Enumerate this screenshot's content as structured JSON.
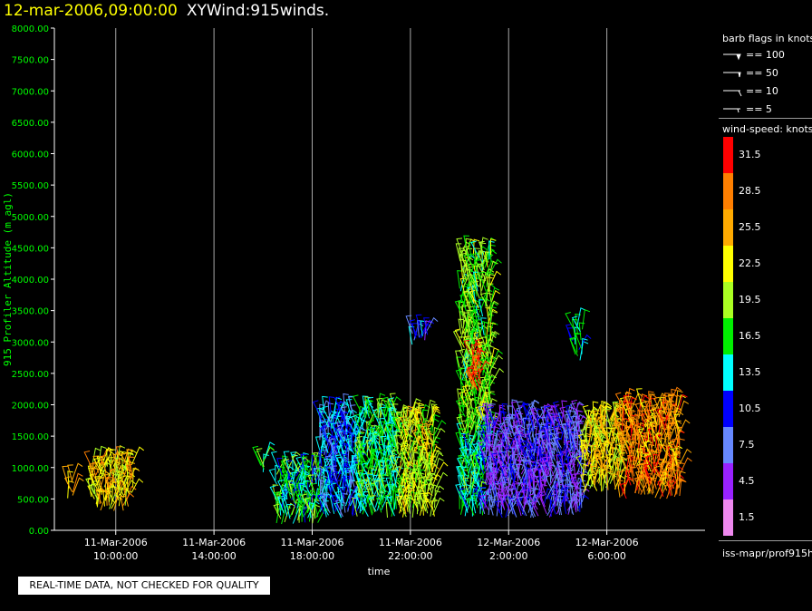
{
  "title": {
    "date": "12-mar-2006,09:00:00",
    "text": "XYWind:915winds."
  },
  "notice": "REAL-TIME DATA, NOT CHECKED FOR QUALITY",
  "legend": {
    "barb_header": "barb flags in knots",
    "barb_flags": [
      "== 100",
      "== 50",
      "== 10",
      "== 5"
    ],
    "speed_header": "wind-speed: knots",
    "speed_bins": [
      {
        "label": "31.5",
        "color": "#ff0000"
      },
      {
        "label": "28.5",
        "color": "#ff7f00"
      },
      {
        "label": "25.5",
        "color": "#ffaa00"
      },
      {
        "label": "22.5",
        "color": "#ffff00"
      },
      {
        "label": "19.5",
        "color": "#aaff22"
      },
      {
        "label": "16.5",
        "color": "#00ee00"
      },
      {
        "label": "13.5",
        "color": "#00ffff"
      },
      {
        "label": "10.5",
        "color": "#0000ff"
      },
      {
        "label": "7.5",
        "color": "#6688ff"
      },
      {
        "label": "4.5",
        "color": "#9922ff"
      },
      {
        "label": "1.5",
        "color": "#ee88ee"
      }
    ],
    "footer": "iss-mapr/prof915h"
  },
  "chart_data": {
    "type": "scatter",
    "ylabel": "915 Profiler Altitude (m agl)",
    "xlabel": "time",
    "ylim": [
      0,
      8000
    ],
    "y_ticks": [
      "0.00",
      "500.00",
      "1000.00",
      "1500.00",
      "2000.00",
      "2500.00",
      "3000.00",
      "3500.00",
      "4000.00",
      "4500.00",
      "5000.00",
      "5500.00",
      "6000.00",
      "6500.00",
      "7000.00",
      "7500.00",
      "8000.00"
    ],
    "xlim_hours": [
      7.5,
      34
    ],
    "x_ticks": [
      {
        "hour": 10,
        "line1": "11-Mar-2006",
        "line2": "10:00:00"
      },
      {
        "hour": 14,
        "line1": "11-Mar-2006",
        "line2": "14:00:00"
      },
      {
        "hour": 18,
        "line1": "11-Mar-2006",
        "line2": "18:00:00"
      },
      {
        "hour": 22,
        "line1": "11-Mar-2006",
        "line2": "22:00:00"
      },
      {
        "hour": 26,
        "line1": "12-Mar-2006",
        "line2": "2:00:00"
      },
      {
        "hour": 30,
        "line1": "12-Mar-2006",
        "line2": "6:00:00"
      }
    ],
    "grid": "vertical",
    "barb_clusters": [
      {
        "t0": 8.0,
        "t1": 8.3,
        "z0": 500,
        "z1": 800,
        "speed": 26
      },
      {
        "t0": 9.0,
        "t1": 10.7,
        "z0": 300,
        "z1": 1100,
        "speed": 24
      },
      {
        "t0": 15.9,
        "t1": 16.1,
        "z0": 900,
        "z1": 1200,
        "speed": 17
      },
      {
        "t0": 16.5,
        "t1": 18.3,
        "z0": 100,
        "z1": 1000,
        "speed": 15
      },
      {
        "t0": 18.3,
        "t1": 19.8,
        "z0": 200,
        "z1": 1900,
        "speed": 11
      },
      {
        "t0": 19.8,
        "t1": 21.5,
        "z0": 200,
        "z1": 1900,
        "speed": 16
      },
      {
        "t0": 21.5,
        "t1": 23.0,
        "z0": 200,
        "z1": 1800,
        "speed": 21
      },
      {
        "t0": 22.0,
        "t1": 22.7,
        "z0": 2950,
        "z1": 3200,
        "speed": 9
      },
      {
        "t0": 24.0,
        "t1": 25.3,
        "z0": 1500,
        "z1": 4400,
        "speed": 18
      },
      {
        "t0": 24.4,
        "t1": 24.9,
        "z0": 2200,
        "z1": 2800,
        "speed": 31
      },
      {
        "t0": 24.0,
        "t1": 25.0,
        "z0": 200,
        "z1": 1500,
        "speed": 15
      },
      {
        "t0": 25.0,
        "t1": 29.0,
        "z0": 200,
        "z1": 1800,
        "speed": 7
      },
      {
        "t0": 28.6,
        "t1": 29.0,
        "z0": 2700,
        "z1": 3300,
        "speed": 14
      },
      {
        "t0": 29.0,
        "t1": 30.5,
        "z0": 600,
        "z1": 1800,
        "speed": 23
      },
      {
        "t0": 30.5,
        "t1": 33.0,
        "z0": 500,
        "z1": 2000,
        "speed": 27
      }
    ]
  }
}
